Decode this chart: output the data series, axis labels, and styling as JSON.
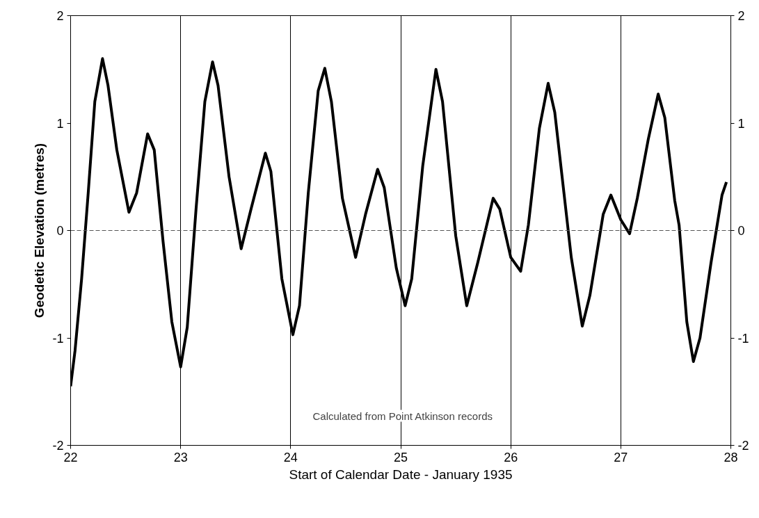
{
  "chart_data": {
    "type": "line",
    "xlabel": "Start of Calendar Date - January 1935",
    "ylabel": "Geodetic Elevation (metres)",
    "x": [
      22.0,
      22.04,
      22.1,
      22.16,
      22.22,
      22.29,
      22.34,
      22.42,
      22.53,
      22.6,
      22.7,
      22.76,
      22.84,
      22.92,
      23.0,
      23.06,
      23.14,
      23.22,
      23.29,
      23.34,
      23.44,
      23.55,
      23.64,
      23.77,
      23.82,
      23.92,
      24.02,
      24.08,
      24.16,
      24.25,
      24.31,
      24.37,
      24.47,
      24.59,
      24.68,
      24.79,
      24.85,
      24.96,
      25.04,
      25.1,
      25.2,
      25.32,
      25.38,
      25.5,
      25.6,
      25.7,
      25.84,
      25.9,
      26.0,
      26.09,
      26.16,
      26.26,
      26.34,
      26.4,
      26.55,
      26.65,
      26.72,
      26.84,
      26.91,
      27.0,
      27.08,
      27.15,
      27.25,
      27.34,
      27.4,
      27.49,
      27.53,
      27.6,
      27.66,
      27.72,
      27.82,
      27.92,
      27.96
    ],
    "series": [
      {
        "color": "#000000",
        "values": [
          -1.45,
          -1.12,
          -0.45,
          0.35,
          1.2,
          1.6,
          1.35,
          0.75,
          0.17,
          0.35,
          0.9,
          0.75,
          -0.1,
          -0.85,
          -1.27,
          -0.9,
          0.2,
          1.2,
          1.57,
          1.35,
          0.5,
          -0.17,
          0.2,
          0.72,
          0.55,
          -0.45,
          -0.97,
          -0.7,
          0.35,
          1.3,
          1.51,
          1.2,
          0.3,
          -0.25,
          0.15,
          0.57,
          0.4,
          -0.35,
          -0.7,
          -0.45,
          0.6,
          1.5,
          1.2,
          -0.05,
          -0.7,
          -0.3,
          0.3,
          0.2,
          -0.25,
          -0.38,
          0.05,
          0.95,
          1.37,
          1.1,
          -0.25,
          -0.89,
          -0.6,
          0.15,
          0.33,
          0.1,
          -0.03,
          0.3,
          0.85,
          1.27,
          1.05,
          0.28,
          0.05,
          -0.85,
          -1.22,
          -1.0,
          -0.3,
          0.33,
          0.45
        ]
      }
    ],
    "xlim": [
      22,
      28
    ],
    "xticks": [
      22,
      23,
      24,
      25,
      26,
      27,
      28
    ],
    "ylim": [
      -2,
      2
    ],
    "yticks": [
      -2,
      -1,
      0,
      1,
      2
    ],
    "y2lim": [
      -2,
      2
    ],
    "y2ticks": [
      -2,
      -1,
      0,
      1,
      2
    ],
    "grid": "x",
    "line_style": "solid",
    "ref_lines": [
      {
        "axis": "y",
        "value": 0,
        "label": null,
        "color": "#555555",
        "line_style": "dashed"
      }
    ],
    "annotations": [
      "Calculated from Point Atkinson records"
    ]
  }
}
